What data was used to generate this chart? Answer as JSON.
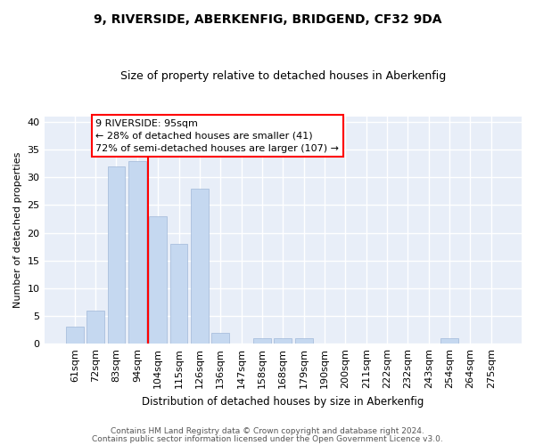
{
  "title": "9, RIVERSIDE, ABERKENFIG, BRIDGEND, CF32 9DA",
  "subtitle": "Size of property relative to detached houses in Aberkenfig",
  "xlabel": "Distribution of detached houses by size in Aberkenfig",
  "ylabel": "Number of detached properties",
  "categories": [
    "61sqm",
    "72sqm",
    "83sqm",
    "94sqm",
    "104sqm",
    "115sqm",
    "126sqm",
    "136sqm",
    "147sqm",
    "158sqm",
    "168sqm",
    "179sqm",
    "190sqm",
    "200sqm",
    "211sqm",
    "222sqm",
    "232sqm",
    "243sqm",
    "254sqm",
    "264sqm",
    "275sqm"
  ],
  "values": [
    3,
    6,
    32,
    33,
    23,
    18,
    28,
    2,
    0,
    1,
    1,
    1,
    0,
    0,
    0,
    0,
    0,
    0,
    1,
    0,
    0
  ],
  "bar_color": "#c5d8f0",
  "bar_edge_color": "#a0b8d8",
  "vline_x_index": 3.5,
  "vline_color": "red",
  "annotation_text": "9 RIVERSIDE: 95sqm\n← 28% of detached houses are smaller (41)\n72% of semi-detached houses are larger (107) →",
  "annotation_box_color": "white",
  "annotation_box_edge_color": "red",
  "ylim": [
    0,
    41
  ],
  "yticks": [
    0,
    5,
    10,
    15,
    20,
    25,
    30,
    35,
    40
  ],
  "background_color": "#e8eef8",
  "grid_color": "white",
  "footer1": "Contains HM Land Registry data © Crown copyright and database right 2024.",
  "footer2": "Contains public sector information licensed under the Open Government Licence v3.0."
}
